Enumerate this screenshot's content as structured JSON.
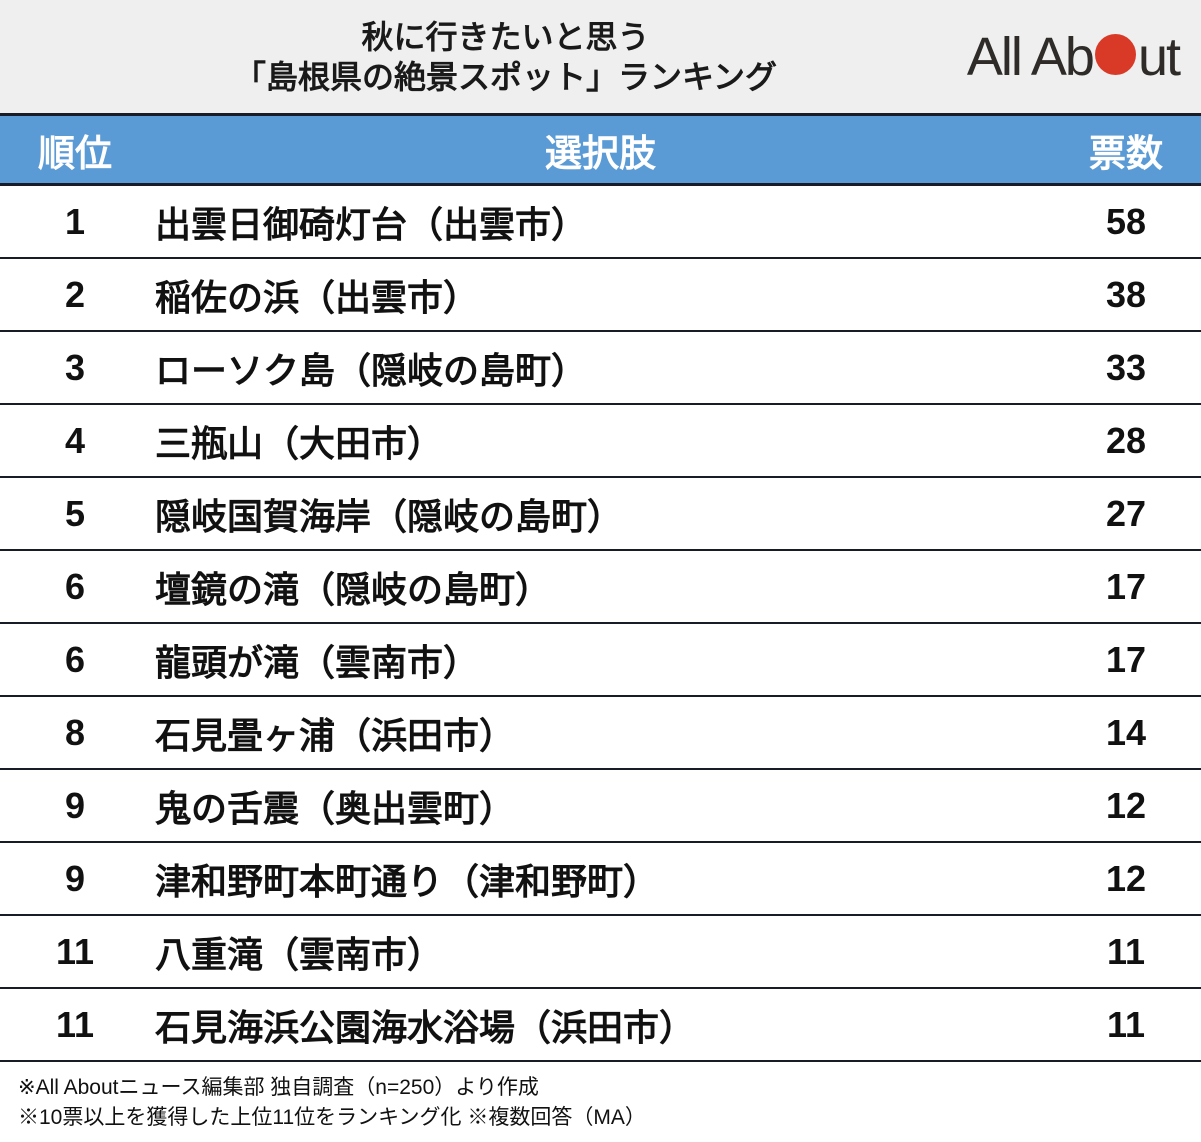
{
  "header": {
    "title_line1": "秋に行きたいと思う",
    "title_line2": "「島根県の絶景スポット」ランキング",
    "logo": {
      "text_before_circle": "All Ab",
      "text_after_circle": "ut",
      "circle_color": "#d93a28",
      "text_color": "#2e2b29"
    }
  },
  "colors": {
    "title_band_bg": "#efefef",
    "table_header_bg": "#5b9bd5",
    "table_header_text": "#ffffff",
    "border_dark": "#171c26",
    "row_bg": "#ffffff",
    "row_text": "#111111"
  },
  "table": {
    "columns": [
      "順位",
      "選択肢",
      "票数"
    ],
    "rows": [
      {
        "rank": "1",
        "name": "出雲日御碕灯台（出雲市）",
        "votes": "58"
      },
      {
        "rank": "2",
        "name": "稲佐の浜（出雲市）",
        "votes": "38"
      },
      {
        "rank": "3",
        "name": "ローソク島（隠岐の島町）",
        "votes": "33"
      },
      {
        "rank": "4",
        "name": "三瓶山（大田市）",
        "votes": "28"
      },
      {
        "rank": "5",
        "name": "隠岐国賀海岸（隠岐の島町）",
        "votes": "27"
      },
      {
        "rank": "6",
        "name": "壇鏡の滝（隠岐の島町）",
        "votes": "17"
      },
      {
        "rank": "6",
        "name": "龍頭が滝（雲南市）",
        "votes": "17"
      },
      {
        "rank": "8",
        "name": "石見畳ヶ浦（浜田市）",
        "votes": "14"
      },
      {
        "rank": "9",
        "name": "鬼の舌震（奥出雲町）",
        "votes": "12"
      },
      {
        "rank": "9",
        "name": "津和野町本町通り（津和野町）",
        "votes": "12"
      },
      {
        "rank": "11",
        "name": "八重滝（雲南市）",
        "votes": "11"
      },
      {
        "rank": "11",
        "name": "石見海浜公園海水浴場（浜田市）",
        "votes": "11"
      }
    ]
  },
  "footer": {
    "note1": "※All Aboutニュース編集部 独自調査（n=250）より作成",
    "note2": "※10票以上を獲得した上位11位をランキング化 ※複数回答（MA）"
  },
  "chart_data": {
    "type": "table",
    "title": "秋に行きたいと思う「島根県の絶景スポット」ランキング",
    "columns": [
      "順位",
      "選択肢",
      "票数"
    ],
    "rows": [
      [
        1,
        "出雲日御碕灯台（出雲市）",
        58
      ],
      [
        2,
        "稲佐の浜（出雲市）",
        38
      ],
      [
        3,
        "ローソク島（隠岐の島町）",
        33
      ],
      [
        4,
        "三瓶山（大田市）",
        28
      ],
      [
        5,
        "隠岐国賀海岸（隠岐の島町）",
        27
      ],
      [
        6,
        "壇鏡の滝（隠岐の島町）",
        17
      ],
      [
        6,
        "龍頭が滝（雲南市）",
        17
      ],
      [
        8,
        "石見畳ヶ浦（浜田市）",
        14
      ],
      [
        9,
        "鬼の舌震（奥出雲町）",
        12
      ],
      [
        9,
        "津和野町本町通り（津和野町）",
        12
      ],
      [
        11,
        "八重滝（雲南市）",
        11
      ],
      [
        11,
        "石見海浜公園海水浴場（浜田市）",
        11
      ]
    ],
    "sample_size": "n=250",
    "notes": "10票以上を獲得した上位11位をランキング化・複数回答（MA）"
  }
}
